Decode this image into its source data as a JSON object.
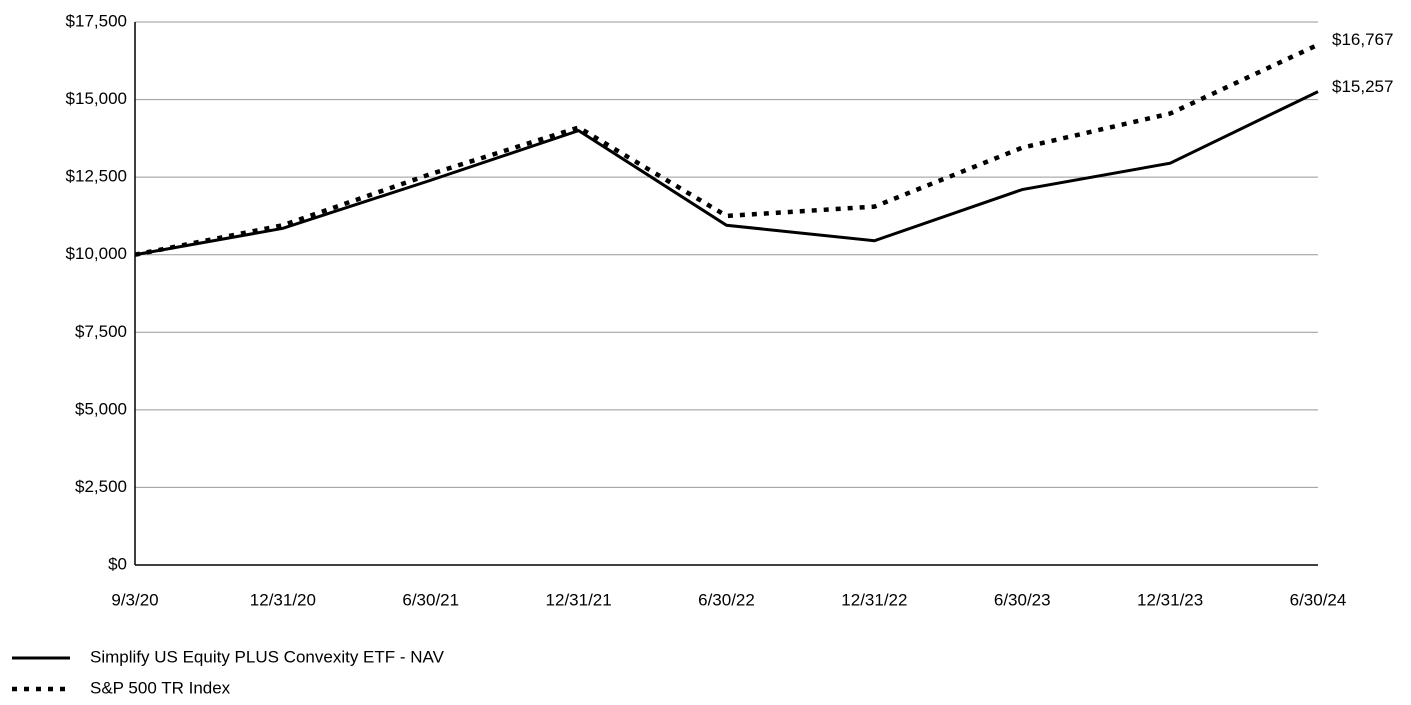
{
  "chart_data": {
    "type": "line",
    "categories": [
      "9/3/20",
      "12/31/20",
      "6/30/21",
      "12/31/21",
      "6/30/22",
      "12/31/22",
      "6/30/23",
      "12/31/23",
      "6/30/24"
    ],
    "series": [
      {
        "name": "Simplify US Equity PLUS Convexity ETF - NAV",
        "color": "#000000",
        "style": "solid",
        "values": [
          10000,
          10850,
          12400,
          14000,
          10950,
          10450,
          12100,
          12950,
          15257
        ],
        "value_labels": [
          null,
          null,
          null,
          null,
          null,
          null,
          null,
          null,
          "$15,257"
        ]
      },
      {
        "name": "S&P 500 TR Index",
        "color": "#000000",
        "style": "dotted",
        "values": [
          10000,
          10950,
          12600,
          14100,
          11250,
          11550,
          13450,
          14550,
          16767
        ],
        "value_labels": [
          null,
          null,
          null,
          null,
          null,
          null,
          null,
          null,
          "$16,767"
        ]
      }
    ],
    "ylim": [
      0,
      17500
    ],
    "yticks": [
      {
        "value": 0,
        "label": "$0"
      },
      {
        "value": 2500,
        "label": "$2,500"
      },
      {
        "value": 5000,
        "label": "$5,000"
      },
      {
        "value": 7500,
        "label": "$7,500"
      },
      {
        "value": 10000,
        "label": "$10,000"
      },
      {
        "value": 12500,
        "label": "$12,500"
      },
      {
        "value": 15000,
        "label": "$15,000"
      },
      {
        "value": 17500,
        "label": "$17,500"
      }
    ],
    "grid": true,
    "legend": "bottom-left"
  }
}
